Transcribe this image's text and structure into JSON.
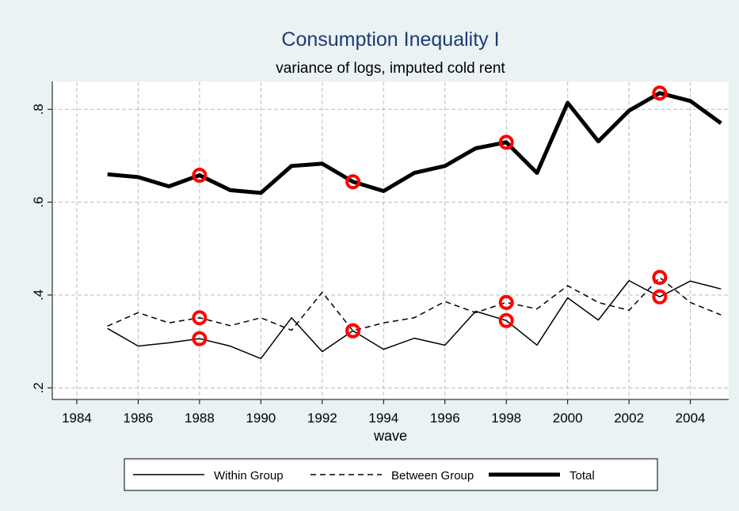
{
  "chart_data": {
    "type": "line",
    "title": "Consumption Inequality I",
    "subtitle": "variance of logs, imputed cold rent",
    "x_label": "wave",
    "x": [
      1985,
      1986,
      1987,
      1988,
      1989,
      1990,
      1991,
      1992,
      1993,
      1994,
      1995,
      1996,
      1997,
      1998,
      1999,
      2000,
      2001,
      2002,
      2003,
      2004,
      2005
    ],
    "series": [
      {
        "name": "Within Group",
        "color": "#000000",
        "values": [
          0.328,
          0.29,
          0.297,
          0.306,
          0.29,
          0.263,
          0.351,
          0.278,
          0.323,
          0.283,
          0.307,
          0.292,
          0.365,
          0.345,
          0.292,
          0.394,
          0.346,
          0.431,
          0.396,
          0.43,
          0.413
        ]
      },
      {
        "name": "Between Group",
        "color": "#000000",
        "values": [
          0.333,
          0.362,
          0.34,
          0.351,
          0.334,
          0.351,
          0.324,
          0.406,
          0.323,
          0.34,
          0.351,
          0.386,
          0.362,
          0.384,
          0.37,
          0.42,
          0.384,
          0.367,
          0.438,
          0.384,
          0.357
        ]
      },
      {
        "name": "Total",
        "color": "#000000",
        "values": [
          0.66,
          0.654,
          0.634,
          0.658,
          0.626,
          0.62,
          0.678,
          0.683,
          0.644,
          0.624,
          0.663,
          0.678,
          0.716,
          0.729,
          0.663,
          0.814,
          0.731,
          0.797,
          0.835,
          0.818,
          0.77
        ]
      }
    ],
    "marker_x": [
      1988,
      1993,
      1998,
      2003
    ],
    "marker_color": "#ff0000",
    "xlim": [
      1983.2,
      2005.25
    ],
    "ylim": [
      0.175,
      0.86
    ],
    "xticks": [
      1984,
      1986,
      1988,
      1990,
      1992,
      1994,
      1996,
      1998,
      2000,
      2002,
      2004
    ],
    "yticks": [
      {
        "value": 0.2,
        "label": ".2"
      },
      {
        "value": 0.4,
        "label": ".4"
      },
      {
        "value": 0.6,
        "label": ".6"
      },
      {
        "value": 0.8,
        "label": ".8"
      }
    ],
    "grid": true,
    "legend": "bottom"
  }
}
